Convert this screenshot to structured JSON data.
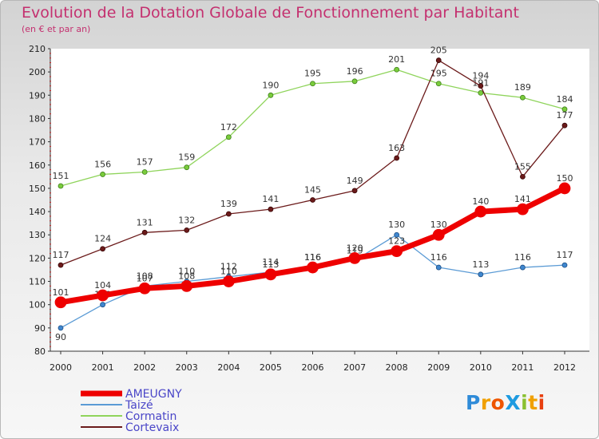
{
  "title": "Evolution de la Dotation Globale de Fonctionnement par Habitant",
  "subtitle": "(en € et par an)",
  "logo": {
    "text": "ProXiti",
    "letters": [
      "P",
      "r",
      "o",
      "X",
      "i",
      "t",
      "i"
    ],
    "colors": [
      "#2f8bd8",
      "#f0a000",
      "#ee5500",
      "#1e9be0",
      "#8ac030",
      "#f0a000",
      "#e84010"
    ]
  },
  "chart_data": {
    "type": "line",
    "x": [
      "2000",
      "2001",
      "2002",
      "2003",
      "2004",
      "2005",
      "2006",
      "2007",
      "2008",
      "2009",
      "2010",
      "2011",
      "2012"
    ],
    "ylim": [
      80,
      210
    ],
    "yticks": [
      80,
      90,
      100,
      110,
      120,
      130,
      140,
      150,
      160,
      170,
      180,
      190,
      200,
      210
    ],
    "grid": false,
    "legend_position": "bottom-left",
    "series": [
      {
        "name": "AMEUGNY",
        "color": "#ee0000",
        "values": [
          101,
          104,
          107,
          108,
          110,
          113,
          116,
          120,
          123,
          130,
          140,
          141,
          150
        ]
      },
      {
        "name": "Taizé",
        "color": "#5b9bd5",
        "values": [
          90,
          100,
          108,
          110,
          112,
          114,
          116,
          119,
          130,
          116,
          113,
          116,
          117
        ]
      },
      {
        "name": "Cormatin",
        "color": "#8fd45b",
        "values": [
          151,
          156,
          157,
          159,
          172,
          190,
          195,
          196,
          201,
          195,
          191,
          189,
          184
        ]
      },
      {
        "name": "Cortevaix",
        "color": "#6b1a1a",
        "values": [
          117,
          124,
          131,
          132,
          139,
          141,
          145,
          149,
          163,
          205,
          194,
          155,
          177
        ]
      }
    ]
  }
}
